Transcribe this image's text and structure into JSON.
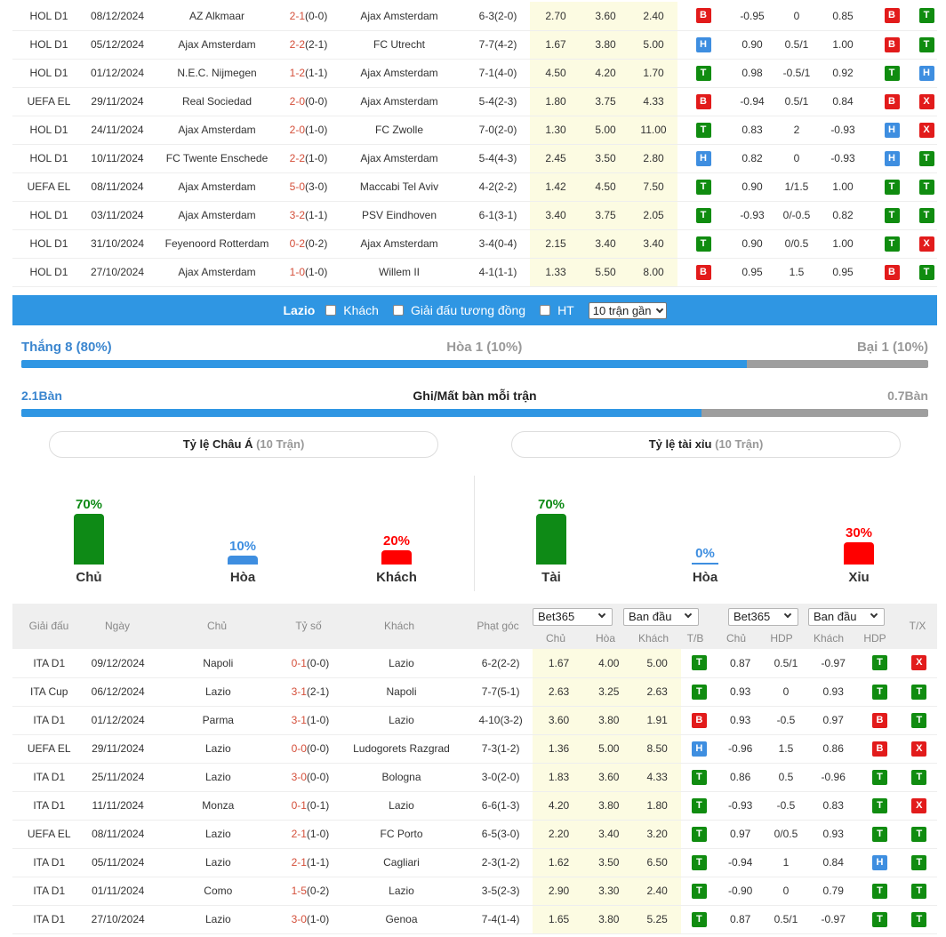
{
  "top_matches": [
    {
      "league": "HOL D1",
      "date": "08/12/2024",
      "home": "AZ Alkmaar",
      "home_hl": false,
      "score": "2-1",
      "ht": "(0-0)",
      "away": "Ajax Amsterdam",
      "away_hl": true,
      "corner": "6-3(2-0)",
      "o1": "2.70",
      "o2": "3.60",
      "o3": "2.40",
      "tb": "B",
      "ah1": "-0.95",
      "ah": "0",
      "ah2": "0.85",
      "r1": "B",
      "r2": "T"
    },
    {
      "league": "HOL D1",
      "date": "05/12/2024",
      "home": "Ajax Amsterdam",
      "home_hl": true,
      "score": "2-2",
      "ht": "(2-1)",
      "away": "FC Utrecht",
      "away_hl": false,
      "corner": "7-7(4-2)",
      "o1": "1.67",
      "o2": "3.80",
      "o3": "5.00",
      "tb": "H",
      "ah1": "0.90",
      "ah": "0.5/1",
      "ah2": "1.00",
      "r1": "B",
      "r2": "T"
    },
    {
      "league": "HOL D1",
      "date": "01/12/2024",
      "home": "N.E.C. Nijmegen",
      "home_hl": false,
      "score": "1-2",
      "ht": "(1-1)",
      "away": "Ajax Amsterdam",
      "away_hl": true,
      "corner": "7-1(4-0)",
      "o1": "4.50",
      "o2": "4.20",
      "o3": "1.70",
      "tb": "T",
      "ah1": "0.98",
      "ah": "-0.5/1",
      "ah2": "0.92",
      "r1": "T",
      "r2": "H"
    },
    {
      "league": "UEFA EL",
      "date": "29/11/2024",
      "home": "Real Sociedad",
      "home_hl": false,
      "score": "2-0",
      "ht": "(0-0)",
      "away": "Ajax Amsterdam",
      "away_hl": true,
      "corner": "5-4(2-3)",
      "o1": "1.80",
      "o2": "3.75",
      "o3": "4.33",
      "tb": "B",
      "ah1": "-0.94",
      "ah": "0.5/1",
      "ah2": "0.84",
      "r1": "B",
      "r2": "X"
    },
    {
      "league": "HOL D1",
      "date": "24/11/2024",
      "home": "Ajax Amsterdam",
      "home_hl": true,
      "score": "2-0",
      "ht": "(1-0)",
      "away": "FC Zwolle",
      "away_hl": false,
      "corner": "7-0(2-0)",
      "o1": "1.30",
      "o2": "5.00",
      "o3": "11.00",
      "tb": "T",
      "ah1": "0.83",
      "ah": "2",
      "ah2": "-0.93",
      "r1": "H",
      "r2": "X"
    },
    {
      "league": "HOL D1",
      "date": "10/11/2024",
      "home": "FC Twente Enschede",
      "home_hl": false,
      "score": "2-2",
      "ht": "(1-0)",
      "away": "Ajax Amsterdam",
      "away_hl": true,
      "corner": "5-4(4-3)",
      "o1": "2.45",
      "o2": "3.50",
      "o3": "2.80",
      "tb": "H",
      "ah1": "0.82",
      "ah": "0",
      "ah2": "-0.93",
      "r1": "H",
      "r2": "T"
    },
    {
      "league": "UEFA EL",
      "date": "08/11/2024",
      "home": "Ajax Amsterdam",
      "home_hl": true,
      "score": "5-0",
      "ht": "(3-0)",
      "away": "Maccabi Tel Aviv",
      "away_hl": false,
      "corner": "4-2(2-2)",
      "o1": "1.42",
      "o2": "4.50",
      "o3": "7.50",
      "tb": "T",
      "ah1": "0.90",
      "ah": "1/1.5",
      "ah2": "1.00",
      "r1": "T",
      "r2": "T"
    },
    {
      "league": "HOL D1",
      "date": "03/11/2024",
      "home": "Ajax Amsterdam",
      "home_hl": true,
      "score": "3-2",
      "ht": "(1-1)",
      "away": "PSV Eindhoven",
      "away_hl": false,
      "corner": "6-1(3-1)",
      "o1": "3.40",
      "o2": "3.75",
      "o3": "2.05",
      "tb": "T",
      "ah1": "-0.93",
      "ah": "0/-0.5",
      "ah2": "0.82",
      "r1": "T",
      "r2": "T"
    },
    {
      "league": "HOL D1",
      "date": "31/10/2024",
      "home": "Feyenoord Rotterdam",
      "home_hl": false,
      "score": "0-2",
      "ht": "(0-2)",
      "away": "Ajax Amsterdam",
      "away_hl": true,
      "corner": "3-4(0-4)",
      "o1": "2.15",
      "o2": "3.40",
      "o3": "3.40",
      "tb": "T",
      "ah1": "0.90",
      "ah": "0/0.5",
      "ah2": "1.00",
      "r1": "T",
      "r2": "X"
    },
    {
      "league": "HOL D1",
      "date": "27/10/2024",
      "home": "Ajax Amsterdam",
      "home_hl": true,
      "score": "1-0",
      "ht": "(1-0)",
      "away": "Willem II",
      "away_hl": false,
      "corner": "4-1(1-1)",
      "o1": "1.33",
      "o2": "5.50",
      "o3": "8.00",
      "tb": "B",
      "ah1": "0.95",
      "ah": "1.5",
      "ah2": "0.95",
      "r1": "B",
      "r2": "T"
    }
  ],
  "filter": {
    "team": "Lazio",
    "away_label": "Khách",
    "same_league_label": "Giải đấu tương đồng",
    "ht_label": "HT",
    "recent_select": "10 trận gần"
  },
  "summary": {
    "win": "Thắng 8 (80%)",
    "draw": "Hòa 1 (10%)",
    "loss": "Bại 1 (10%)",
    "win_fraction": 0.8,
    "goals_for": "2.1Bàn",
    "goals_label": "Ghi/Mất bàn mỗi trận",
    "goals_against": "0.7Bàn",
    "goals_fraction": 0.75
  },
  "asian": {
    "title": "Tỷ lệ Châu Á",
    "sub": "(10 Trận)",
    "bars": [
      {
        "pct": "70%",
        "value": 70,
        "label": "Chủ",
        "color": "#0e8a16"
      },
      {
        "pct": "10%",
        "value": 10,
        "label": "Hòa",
        "color": "#3e8ee0"
      },
      {
        "pct": "20%",
        "value": 20,
        "label": "Khách",
        "color": "#ff0000"
      }
    ]
  },
  "overunder": {
    "title": "Tỷ lệ tài xỉu",
    "sub": "(10 Trận)",
    "bars": [
      {
        "pct": "70%",
        "value": 70,
        "label": "Tài",
        "color": "#0e8a16"
      },
      {
        "pct": "0%",
        "value": 0,
        "label": "Hòa",
        "color": "#3e8ee0"
      },
      {
        "pct": "30%",
        "value": 30,
        "label": "Xỉu",
        "color": "#ff0000"
      }
    ]
  },
  "head2": {
    "league": "Giải đấu",
    "date": "Ngày",
    "home": "Chủ",
    "score": "Tỷ số",
    "away": "Khách",
    "corner": "Phạt góc",
    "book1": "Bet365",
    "init1": "Ban đầu",
    "book2": "Bet365",
    "init2": "Ban đầu",
    "sub_home": "Chủ",
    "sub_draw": "Hòa",
    "sub_away": "Khách",
    "sub_tb": "T/B",
    "sub_home2": "Chủ",
    "sub_hdp": "HDP",
    "sub_away2": "Khách",
    "sub_hdp2": "HDP",
    "tx": "T/X"
  },
  "lazio_matches": [
    {
      "league": "ITA D1",
      "date": "09/12/2024",
      "home": "Napoli",
      "home_hl": false,
      "score": "0-1",
      "ht": "(0-0)",
      "away": "Lazio",
      "away_hl": true,
      "corner": "6-2(2-2)",
      "o1": "1.67",
      "o2": "4.00",
      "o3": "5.00",
      "tb": "T",
      "ah1": "0.87",
      "ah": "0.5/1",
      "ah2": "-0.97",
      "r1": "T",
      "r2": "X"
    },
    {
      "league": "ITA Cup",
      "date": "06/12/2024",
      "home": "Lazio",
      "home_hl": true,
      "score": "3-1",
      "ht": "(2-1)",
      "away": "Napoli",
      "away_hl": false,
      "corner": "7-7(5-1)",
      "o1": "2.63",
      "o2": "3.25",
      "o3": "2.63",
      "tb": "T",
      "ah1": "0.93",
      "ah": "0",
      "ah2": "0.93",
      "r1": "T",
      "r2": "T"
    },
    {
      "league": "ITA D1",
      "date": "01/12/2024",
      "home": "Parma",
      "home_hl": false,
      "score": "3-1",
      "ht": "(1-0)",
      "away": "Lazio",
      "away_hl": true,
      "corner": "4-10(3-2)",
      "o1": "3.60",
      "o2": "3.80",
      "o3": "1.91",
      "tb": "B",
      "ah1": "0.93",
      "ah": "-0.5",
      "ah2": "0.97",
      "r1": "B",
      "r2": "T"
    },
    {
      "league": "UEFA EL",
      "date": "29/11/2024",
      "home": "Lazio",
      "home_hl": true,
      "score": "0-0",
      "ht": "(0-0)",
      "away": "Ludogorets Razgrad",
      "away_hl": false,
      "corner": "7-3(1-2)",
      "o1": "1.36",
      "o2": "5.00",
      "o3": "8.50",
      "tb": "H",
      "ah1": "-0.96",
      "ah": "1.5",
      "ah2": "0.86",
      "r1": "B",
      "r2": "X"
    },
    {
      "league": "ITA D1",
      "date": "25/11/2024",
      "home": "Lazio",
      "home_hl": true,
      "score": "3-0",
      "ht": "(0-0)",
      "away": "Bologna",
      "away_hl": false,
      "corner": "3-0(2-0)",
      "o1": "1.83",
      "o2": "3.60",
      "o3": "4.33",
      "tb": "T",
      "ah1": "0.86",
      "ah": "0.5",
      "ah2": "-0.96",
      "r1": "T",
      "r2": "T"
    },
    {
      "league": "ITA D1",
      "date": "11/11/2024",
      "home": "Monza",
      "home_hl": false,
      "score": "0-1",
      "ht": "(0-1)",
      "away": "Lazio",
      "away_hl": true,
      "corner": "6-6(1-3)",
      "o1": "4.20",
      "o2": "3.80",
      "o3": "1.80",
      "tb": "T",
      "ah1": "-0.93",
      "ah": "-0.5",
      "ah2": "0.83",
      "r1": "T",
      "r2": "X"
    },
    {
      "league": "UEFA EL",
      "date": "08/11/2024",
      "home": "Lazio",
      "home_hl": true,
      "score": "2-1",
      "ht": "(1-0)",
      "away": "FC Porto",
      "away_hl": false,
      "corner": "6-5(3-0)",
      "o1": "2.20",
      "o2": "3.40",
      "o3": "3.20",
      "tb": "T",
      "ah1": "0.97",
      "ah": "0/0.5",
      "ah2": "0.93",
      "r1": "T",
      "r2": "T"
    },
    {
      "league": "ITA D1",
      "date": "05/11/2024",
      "home": "Lazio",
      "home_hl": true,
      "score": "2-1",
      "ht": "(1-1)",
      "away": "Cagliari",
      "away_hl": false,
      "corner": "2-3(1-2)",
      "o1": "1.62",
      "o2": "3.50",
      "o3": "6.50",
      "tb": "T",
      "ah1": "-0.94",
      "ah": "1",
      "ah2": "0.84",
      "r1": "H",
      "r2": "T"
    },
    {
      "league": "ITA D1",
      "date": "01/11/2024",
      "home": "Como",
      "home_hl": false,
      "score": "1-5",
      "ht": "(0-2)",
      "away": "Lazio",
      "away_hl": true,
      "corner": "3-5(2-3)",
      "o1": "2.90",
      "o2": "3.30",
      "o3": "2.40",
      "tb": "T",
      "ah1": "-0.90",
      "ah": "0",
      "ah2": "0.79",
      "r1": "T",
      "r2": "T"
    },
    {
      "league": "ITA D1",
      "date": "27/10/2024",
      "home": "Lazio",
      "home_hl": true,
      "score": "3-0",
      "ht": "(1-0)",
      "away": "Genoa",
      "away_hl": false,
      "corner": "7-4(1-4)",
      "o1": "1.65",
      "o2": "3.80",
      "o3": "5.25",
      "tb": "T",
      "ah1": "0.87",
      "ah": "0.5/1",
      "ah2": "-0.97",
      "r1": "T",
      "r2": "T"
    }
  ],
  "colors": {
    "accent_blue": "#2f96e3",
    "highlight_home": "#e8745d",
    "highlight_lazio": "#3b86cf",
    "badge_B": "#e21b1b",
    "badge_X": "#e21b1b",
    "badge_T": "#108c10",
    "badge_H": "#3e8ee0"
  }
}
